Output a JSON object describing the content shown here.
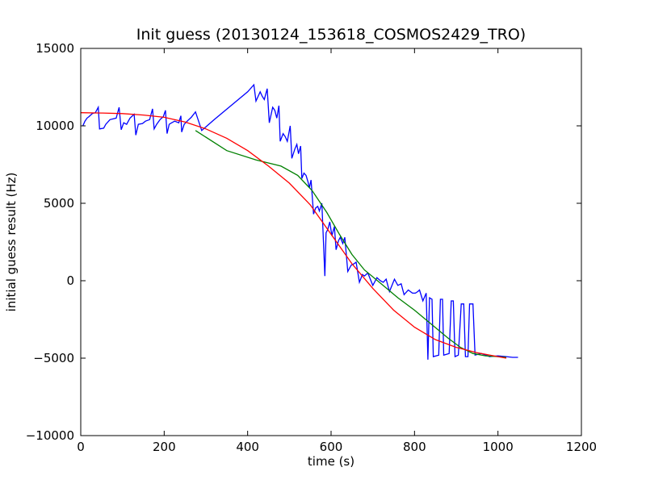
{
  "chart_data": {
    "type": "line",
    "title": "Init guess (20130124_153618_COSMOS2429_TRO)",
    "xlabel": "time (s)",
    "ylabel": "initial guess result (Hz)",
    "xlim": [
      0,
      1200
    ],
    "ylim": [
      -10000,
      15000
    ],
    "xticks": [
      0,
      200,
      400,
      600,
      800,
      1000,
      1200
    ],
    "yticks": [
      -10000,
      -5000,
      0,
      5000,
      10000,
      15000
    ],
    "grid": false,
    "colors": {
      "blue": "#0000ff",
      "green": "#008000",
      "red": "#ff0000"
    },
    "series": [
      {
        "color": "#0000ff",
        "points": [
          [
            5,
            10000
          ],
          [
            10,
            10300
          ],
          [
            15,
            10500
          ],
          [
            20,
            10600
          ],
          [
            28,
            10800
          ],
          [
            35,
            10850
          ],
          [
            42,
            11200
          ],
          [
            45,
            9800
          ],
          [
            55,
            9850
          ],
          [
            60,
            10100
          ],
          [
            70,
            10400
          ],
          [
            85,
            10500
          ],
          [
            92,
            11200
          ],
          [
            97,
            9750
          ],
          [
            103,
            10200
          ],
          [
            110,
            10100
          ],
          [
            118,
            10500
          ],
          [
            128,
            10750
          ],
          [
            132,
            9400
          ],
          [
            138,
            10100
          ],
          [
            148,
            10150
          ],
          [
            155,
            10300
          ],
          [
            165,
            10400
          ],
          [
            172,
            11100
          ],
          [
            176,
            9800
          ],
          [
            182,
            10100
          ],
          [
            190,
            10400
          ],
          [
            198,
            10600
          ],
          [
            203,
            11000
          ],
          [
            207,
            9500
          ],
          [
            212,
            10100
          ],
          [
            218,
            10200
          ],
          [
            225,
            10300
          ],
          [
            235,
            10200
          ],
          [
            240,
            10650
          ],
          [
            242,
            9600
          ],
          [
            248,
            10100
          ],
          [
            255,
            10300
          ],
          [
            265,
            10550
          ],
          [
            275,
            10900
          ],
          [
            290,
            9700
          ],
          [
            320,
            10400
          ],
          [
            360,
            11300
          ],
          [
            400,
            12200
          ],
          [
            415,
            12650
          ],
          [
            420,
            11600
          ],
          [
            430,
            12200
          ],
          [
            435,
            11900
          ],
          [
            440,
            11700
          ],
          [
            447,
            12400
          ],
          [
            452,
            10200
          ],
          [
            460,
            11200
          ],
          [
            465,
            11000
          ],
          [
            470,
            10500
          ],
          [
            475,
            11300
          ],
          [
            478,
            9000
          ],
          [
            485,
            9500
          ],
          [
            490,
            9300
          ],
          [
            495,
            9000
          ],
          [
            502,
            10000
          ],
          [
            506,
            7900
          ],
          [
            513,
            8500
          ],
          [
            518,
            8800
          ],
          [
            522,
            8200
          ],
          [
            527,
            8700
          ],
          [
            530,
            6600
          ],
          [
            535,
            6950
          ],
          [
            540,
            6800
          ],
          [
            545,
            6350
          ],
          [
            548,
            6000
          ],
          [
            552,
            6500
          ],
          [
            558,
            4300
          ],
          [
            563,
            4700
          ],
          [
            568,
            4800
          ],
          [
            572,
            4500
          ],
          [
            578,
            5000
          ],
          [
            585,
            300
          ],
          [
            588,
            3100
          ],
          [
            592,
            3300
          ],
          [
            597,
            3800
          ],
          [
            602,
            2900
          ],
          [
            608,
            3500
          ],
          [
            612,
            2000
          ],
          [
            618,
            2600
          ],
          [
            622,
            2800
          ],
          [
            628,
            2400
          ],
          [
            633,
            2800
          ],
          [
            640,
            600
          ],
          [
            648,
            1000
          ],
          [
            655,
            1100
          ],
          [
            660,
            1200
          ],
          [
            668,
            -100
          ],
          [
            675,
            400
          ],
          [
            680,
            300
          ],
          [
            688,
            500
          ],
          [
            700,
            -300
          ],
          [
            710,
            200
          ],
          [
            718,
            0
          ],
          [
            725,
            -100
          ],
          [
            732,
            100
          ],
          [
            740,
            -700
          ],
          [
            752,
            100
          ],
          [
            760,
            -300
          ],
          [
            768,
            -200
          ],
          [
            775,
            -900
          ],
          [
            785,
            -600
          ],
          [
            795,
            -800
          ],
          [
            802,
            -800
          ],
          [
            808,
            -700
          ],
          [
            812,
            -600
          ],
          [
            820,
            -1300
          ],
          [
            828,
            -800
          ],
          [
            832,
            -5100
          ],
          [
            836,
            -1100
          ],
          [
            842,
            -1200
          ],
          [
            845,
            -4900
          ],
          [
            858,
            -4800
          ],
          [
            862,
            -1200
          ],
          [
            867,
            -1200
          ],
          [
            870,
            -4800
          ],
          [
            883,
            -4700
          ],
          [
            888,
            -1300
          ],
          [
            893,
            -1300
          ],
          [
            897,
            -4900
          ],
          [
            905,
            -4800
          ],
          [
            912,
            -1500
          ],
          [
            918,
            -1500
          ],
          [
            922,
            -4900
          ],
          [
            928,
            -4900
          ],
          [
            932,
            -1500
          ],
          [
            940,
            -1500
          ],
          [
            945,
            -4800
          ],
          [
            960,
            -4700
          ],
          [
            980,
            -4900
          ],
          [
            1000,
            -4850
          ],
          [
            1020,
            -4900
          ],
          [
            1035,
            -4950
          ],
          [
            1048,
            -4950
          ]
        ]
      },
      {
        "color": "#008000",
        "points": [
          [
            275,
            9700
          ],
          [
            350,
            8400
          ],
          [
            420,
            7800
          ],
          [
            480,
            7400
          ],
          [
            520,
            6800
          ],
          [
            555,
            5800
          ],
          [
            590,
            4400
          ],
          [
            620,
            3000
          ],
          [
            650,
            1700
          ],
          [
            680,
            700
          ],
          [
            720,
            -200
          ],
          [
            760,
            -1100
          ],
          [
            800,
            -1900
          ],
          [
            840,
            -2800
          ],
          [
            880,
            -3700
          ],
          [
            910,
            -4300
          ],
          [
            940,
            -4700
          ],
          [
            970,
            -4850
          ],
          [
            1000,
            -4900
          ],
          [
            1020,
            -4950
          ]
        ]
      },
      {
        "color": "#ff0000",
        "points": [
          [
            0,
            10850
          ],
          [
            50,
            10830
          ],
          [
            100,
            10790
          ],
          [
            150,
            10700
          ],
          [
            200,
            10550
          ],
          [
            250,
            10250
          ],
          [
            300,
            9800
          ],
          [
            350,
            9200
          ],
          [
            400,
            8400
          ],
          [
            450,
            7400
          ],
          [
            500,
            6300
          ],
          [
            550,
            4900
          ],
          [
            600,
            3000
          ],
          [
            650,
            1100
          ],
          [
            700,
            -500
          ],
          [
            750,
            -1900
          ],
          [
            800,
            -3000
          ],
          [
            850,
            -3800
          ],
          [
            900,
            -4300
          ],
          [
            950,
            -4650
          ],
          [
            1000,
            -4900
          ],
          [
            1020,
            -5000
          ]
        ]
      }
    ]
  }
}
